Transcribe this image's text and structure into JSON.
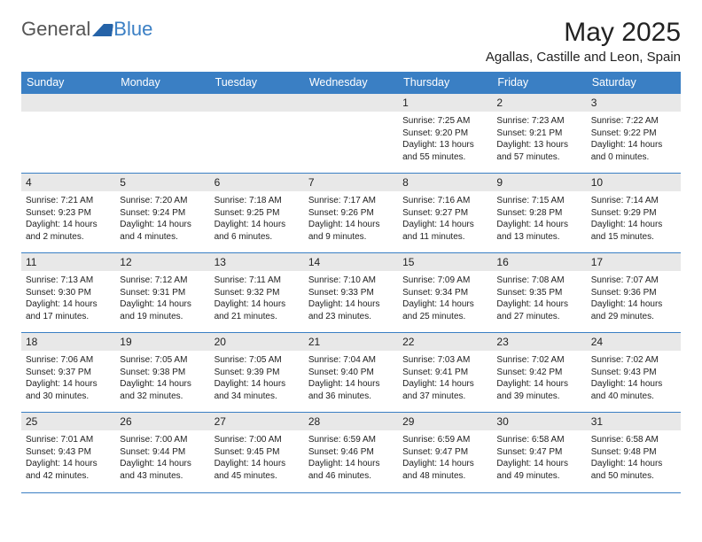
{
  "logo": {
    "text1": "General",
    "text2": "Blue"
  },
  "title": "May 2025",
  "location": "Agallas, Castille and Leon, Spain",
  "colors": {
    "header_bg": "#3a7fc4",
    "band_bg": "#e8e8e8",
    "rule": "#3a7fc4",
    "text": "#222222",
    "background": "#ffffff"
  },
  "day_names": [
    "Sunday",
    "Monday",
    "Tuesday",
    "Wednesday",
    "Thursday",
    "Friday",
    "Saturday"
  ],
  "weeks": [
    [
      null,
      null,
      null,
      null,
      {
        "n": "1",
        "sr": "7:25 AM",
        "ss": "9:20 PM",
        "dl": "13 hours and 55 minutes."
      },
      {
        "n": "2",
        "sr": "7:23 AM",
        "ss": "9:21 PM",
        "dl": "13 hours and 57 minutes."
      },
      {
        "n": "3",
        "sr": "7:22 AM",
        "ss": "9:22 PM",
        "dl": "14 hours and 0 minutes."
      }
    ],
    [
      {
        "n": "4",
        "sr": "7:21 AM",
        "ss": "9:23 PM",
        "dl": "14 hours and 2 minutes."
      },
      {
        "n": "5",
        "sr": "7:20 AM",
        "ss": "9:24 PM",
        "dl": "14 hours and 4 minutes."
      },
      {
        "n": "6",
        "sr": "7:18 AM",
        "ss": "9:25 PM",
        "dl": "14 hours and 6 minutes."
      },
      {
        "n": "7",
        "sr": "7:17 AM",
        "ss": "9:26 PM",
        "dl": "14 hours and 9 minutes."
      },
      {
        "n": "8",
        "sr": "7:16 AM",
        "ss": "9:27 PM",
        "dl": "14 hours and 11 minutes."
      },
      {
        "n": "9",
        "sr": "7:15 AM",
        "ss": "9:28 PM",
        "dl": "14 hours and 13 minutes."
      },
      {
        "n": "10",
        "sr": "7:14 AM",
        "ss": "9:29 PM",
        "dl": "14 hours and 15 minutes."
      }
    ],
    [
      {
        "n": "11",
        "sr": "7:13 AM",
        "ss": "9:30 PM",
        "dl": "14 hours and 17 minutes."
      },
      {
        "n": "12",
        "sr": "7:12 AM",
        "ss": "9:31 PM",
        "dl": "14 hours and 19 minutes."
      },
      {
        "n": "13",
        "sr": "7:11 AM",
        "ss": "9:32 PM",
        "dl": "14 hours and 21 minutes."
      },
      {
        "n": "14",
        "sr": "7:10 AM",
        "ss": "9:33 PM",
        "dl": "14 hours and 23 minutes."
      },
      {
        "n": "15",
        "sr": "7:09 AM",
        "ss": "9:34 PM",
        "dl": "14 hours and 25 minutes."
      },
      {
        "n": "16",
        "sr": "7:08 AM",
        "ss": "9:35 PM",
        "dl": "14 hours and 27 minutes."
      },
      {
        "n": "17",
        "sr": "7:07 AM",
        "ss": "9:36 PM",
        "dl": "14 hours and 29 minutes."
      }
    ],
    [
      {
        "n": "18",
        "sr": "7:06 AM",
        "ss": "9:37 PM",
        "dl": "14 hours and 30 minutes."
      },
      {
        "n": "19",
        "sr": "7:05 AM",
        "ss": "9:38 PM",
        "dl": "14 hours and 32 minutes."
      },
      {
        "n": "20",
        "sr": "7:05 AM",
        "ss": "9:39 PM",
        "dl": "14 hours and 34 minutes."
      },
      {
        "n": "21",
        "sr": "7:04 AM",
        "ss": "9:40 PM",
        "dl": "14 hours and 36 minutes."
      },
      {
        "n": "22",
        "sr": "7:03 AM",
        "ss": "9:41 PM",
        "dl": "14 hours and 37 minutes."
      },
      {
        "n": "23",
        "sr": "7:02 AM",
        "ss": "9:42 PM",
        "dl": "14 hours and 39 minutes."
      },
      {
        "n": "24",
        "sr": "7:02 AM",
        "ss": "9:43 PM",
        "dl": "14 hours and 40 minutes."
      }
    ],
    [
      {
        "n": "25",
        "sr": "7:01 AM",
        "ss": "9:43 PM",
        "dl": "14 hours and 42 minutes."
      },
      {
        "n": "26",
        "sr": "7:00 AM",
        "ss": "9:44 PM",
        "dl": "14 hours and 43 minutes."
      },
      {
        "n": "27",
        "sr": "7:00 AM",
        "ss": "9:45 PM",
        "dl": "14 hours and 45 minutes."
      },
      {
        "n": "28",
        "sr": "6:59 AM",
        "ss": "9:46 PM",
        "dl": "14 hours and 46 minutes."
      },
      {
        "n": "29",
        "sr": "6:59 AM",
        "ss": "9:47 PM",
        "dl": "14 hours and 48 minutes."
      },
      {
        "n": "30",
        "sr": "6:58 AM",
        "ss": "9:47 PM",
        "dl": "14 hours and 49 minutes."
      },
      {
        "n": "31",
        "sr": "6:58 AM",
        "ss": "9:48 PM",
        "dl": "14 hours and 50 minutes."
      }
    ]
  ],
  "labels": {
    "sunrise": "Sunrise:",
    "sunset": "Sunset:",
    "daylight": "Daylight:"
  }
}
